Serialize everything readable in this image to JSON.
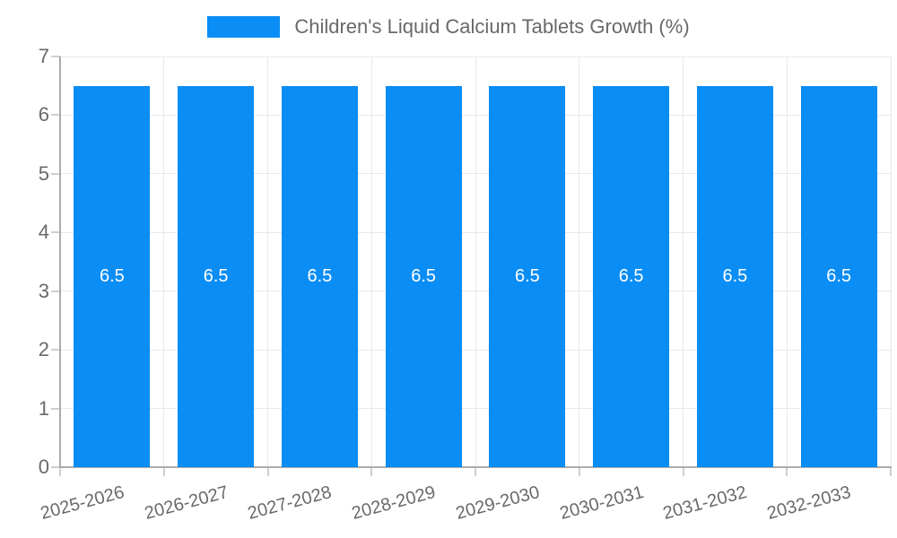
{
  "chart_data": {
    "type": "bar",
    "title": "Children's Liquid Calcium Tablets Growth (%)",
    "categories": [
      "2025-2026",
      "2026-2027",
      "2027-2028",
      "2028-2029",
      "2029-2030",
      "2030-2031",
      "2031-2032",
      "2032-2033"
    ],
    "values": [
      6.5,
      6.5,
      6.5,
      6.5,
      6.5,
      6.5,
      6.5,
      6.5
    ],
    "bar_labels": [
      "6.5",
      "6.5",
      "6.5",
      "6.5",
      "6.5",
      "6.5",
      "6.5",
      "6.5"
    ],
    "xlabel": "",
    "ylabel": "",
    "ylim": [
      0,
      7
    ],
    "yticks": [
      0,
      1,
      2,
      3,
      4,
      5,
      6,
      7
    ],
    "grid": true,
    "legend_position": "top",
    "colors": {
      "bar": "#0a8df4",
      "bar_label": "#ffffff",
      "axis_text": "#696969",
      "grid_line": "#e8e8e8",
      "axis_line": "#ababab",
      "tick_mark": "#cfcfcf",
      "background": "#ffffff"
    }
  }
}
